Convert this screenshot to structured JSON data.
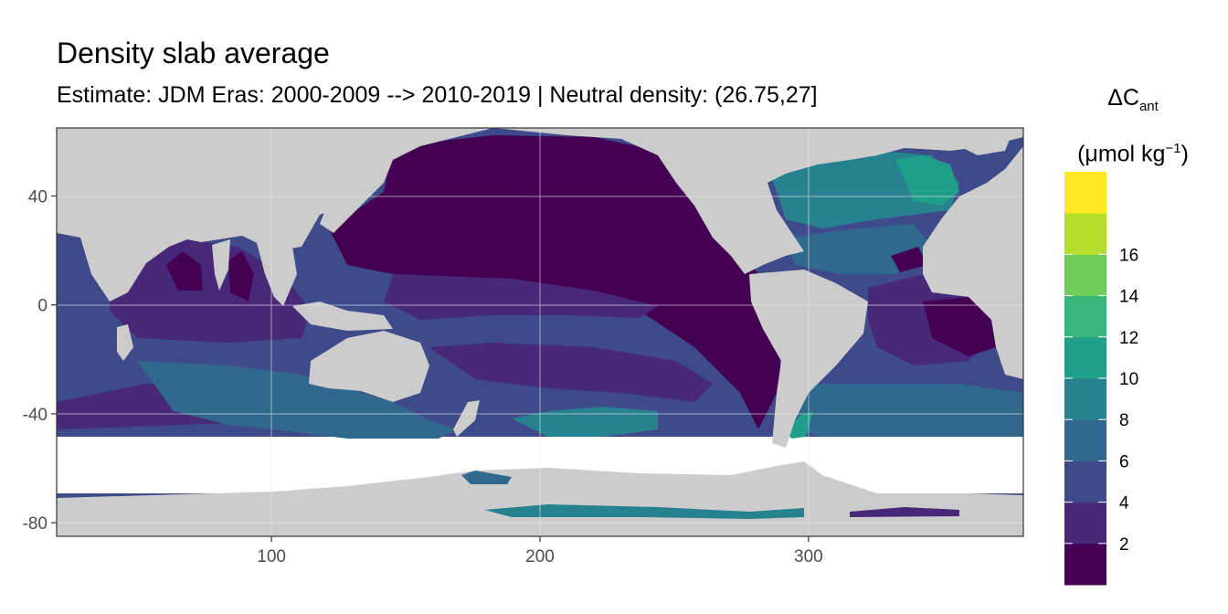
{
  "title": "Density slab average",
  "subtitle": "Estimate: JDM Eras: 2000-2009 --> 2010-2019 | Neutral density: (26.75,27]",
  "legend": {
    "title_symbol": "ΔC",
    "title_sub": "ant",
    "unit_prefix": "(μmol kg",
    "unit_sup": "−1",
    "unit_suffix": ")",
    "breaks": [
      2,
      4,
      6,
      8,
      10,
      12,
      14,
      16
    ],
    "break_labels": [
      "2",
      "4",
      "6",
      "8",
      "10",
      "12",
      "14",
      "16"
    ],
    "colors": [
      "#440154",
      "#482878",
      "#3E4A89",
      "#31688E",
      "#26828E",
      "#1F9E89",
      "#35B779",
      "#6DCD59",
      "#B4DE2C",
      "#FDE725"
    ]
  },
  "chart_data": {
    "type": "heatmap",
    "xlim": [
      20,
      380
    ],
    "ylim": [
      -85,
      65
    ],
    "x_ticks": [
      100,
      200,
      300
    ],
    "x_tick_labels": [
      "100",
      "200",
      "300"
    ],
    "y_ticks": [
      -80,
      -40,
      0,
      40
    ],
    "y_tick_labels": [
      "-80",
      "-40",
      "0",
      "40"
    ],
    "land_color": "#cccccc",
    "missing_color": "#ffffff",
    "grid": true,
    "legend_position": "right"
  }
}
